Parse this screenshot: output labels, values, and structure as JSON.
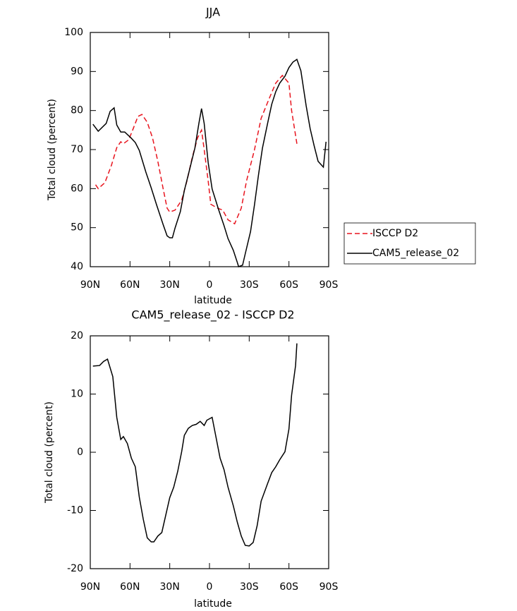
{
  "chart_data": [
    {
      "type": "line",
      "title": "JJA",
      "xlabel": "latitude",
      "ylabel": "Total cloud (percent)",
      "xlim": [
        90,
        -90
      ],
      "xticks": [
        {
          "value": 90,
          "label": "90N"
        },
        {
          "value": 60,
          "label": "60N"
        },
        {
          "value": 30,
          "label": "30N"
        },
        0,
        {
          "value": -30,
          "label": "30S"
        },
        {
          "value": -60,
          "label": "60S"
        },
        {
          "value": -90,
          "label": "90S"
        }
      ],
      "ylim": [
        40,
        100
      ],
      "yticks": [
        40,
        50,
        60,
        70,
        80,
        90,
        100
      ],
      "legend": "right",
      "series": [
        {
          "name": "ISCCP D2",
          "color": "#e8141e",
          "linestyle": "dashed",
          "x": [
            86,
            84,
            79,
            74,
            70,
            67,
            65,
            61,
            58,
            54,
            51,
            47,
            43,
            39,
            35,
            32,
            30,
            26,
            21,
            17,
            13,
            9,
            6,
            4,
            1,
            -1,
            -6,
            -10,
            -14,
            -19,
            -24,
            -28,
            -34,
            -39,
            -45,
            -50,
            -55,
            -60,
            -62,
            -66
          ],
          "values": [
            61,
            60,
            61.5,
            66,
            70.5,
            72,
            71.5,
            72.5,
            75,
            78.5,
            79,
            77,
            73,
            67,
            60,
            55,
            54,
            54.5,
            57,
            62,
            68,
            73,
            75,
            70,
            62,
            56,
            55,
            54.5,
            52,
            51,
            55,
            62,
            70,
            78,
            83,
            87,
            89,
            87,
            80,
            71.5
          ]
        },
        {
          "name": "CAM5_release_02",
          "color": "#000000",
          "linestyle": "solid",
          "x": [
            88,
            84,
            78,
            75,
            72,
            70,
            67,
            64,
            59,
            56,
            53,
            48,
            44,
            40,
            35,
            32,
            30,
            28,
            26,
            22,
            19,
            15,
            11,
            8,
            6,
            4,
            1,
            -2,
            -7,
            -11,
            -14,
            -18,
            -21,
            -22,
            -25,
            -27,
            -31,
            -34,
            -37,
            -40,
            -44,
            -47,
            -50,
            -53,
            -57,
            -60,
            -63,
            -66,
            -69,
            -73,
            -76,
            -79,
            -82,
            -86,
            -88
          ],
          "values": [
            76.5,
            74.7,
            76.7,
            79.8,
            80.7,
            76.3,
            74.5,
            74.5,
            72.9,
            71.8,
            69.8,
            64.2,
            60.2,
            55.9,
            50.8,
            47.9,
            47.4,
            47.4,
            49.9,
            54.1,
            59.5,
            64.9,
            70.4,
            76.7,
            80.5,
            76.7,
            66.7,
            59.9,
            54.5,
            50.5,
            47.2,
            44.2,
            41.1,
            40,
            40.4,
            43.3,
            49,
            55.9,
            63.5,
            70.4,
            76.9,
            81.6,
            84.8,
            87,
            88.8,
            91,
            92.4,
            93.1,
            90.2,
            81.2,
            75.4,
            71,
            67,
            65.5,
            72
          ]
        }
      ]
    },
    {
      "type": "line",
      "title": "CAM5_release_02 - ISCCP D2",
      "xlabel": "latitude",
      "ylabel": "Total cloud (percent)",
      "xlim": [
        90,
        -90
      ],
      "xticks": [
        {
          "value": 90,
          "label": "90N"
        },
        {
          "value": 60,
          "label": "60N"
        },
        {
          "value": 30,
          "label": "30N"
        },
        0,
        {
          "value": -30,
          "label": "30S"
        },
        {
          "value": -60,
          "label": "60S"
        },
        {
          "value": -90,
          "label": "90S"
        }
      ],
      "ylim": [
        -20,
        20
      ],
      "yticks": [
        -20,
        -10,
        0,
        10,
        20
      ],
      "series": [
        {
          "color": "#000000",
          "linestyle": "solid",
          "x": [
            88,
            83,
            80,
            77,
            73,
            70,
            67,
            65,
            62,
            59,
            56,
            53,
            50,
            47,
            44,
            42,
            39,
            36,
            33,
            30,
            27,
            24,
            21,
            19,
            16,
            13,
            10,
            7,
            4,
            2,
            -2,
            -5,
            -8,
            -11,
            -14,
            -18,
            -21,
            -24,
            -27,
            -30,
            -33,
            -36,
            -39,
            -44,
            -47,
            -50,
            -53,
            -57,
            -60,
            -62,
            -65,
            -66
          ],
          "values": [
            14.8,
            14.9,
            15.6,
            16,
            13,
            6,
            2.2,
            2.7,
            1.5,
            -1,
            -2.5,
            -7.7,
            -11.5,
            -14.7,
            -15.4,
            -15.4,
            -14.4,
            -13.8,
            -10.8,
            -7.8,
            -6,
            -3.3,
            0.1,
            2.9,
            4.1,
            4.6,
            4.8,
            5.3,
            4.6,
            5.5,
            6,
            2.5,
            -1,
            -3,
            -6,
            -9.2,
            -12,
            -14.4,
            -16,
            -16.1,
            -15.5,
            -12.6,
            -8.4,
            -5.3,
            -3.5,
            -2.5,
            -1.3,
            0.1,
            4,
            9.8,
            14.9,
            18.7
          ]
        }
      ]
    }
  ]
}
